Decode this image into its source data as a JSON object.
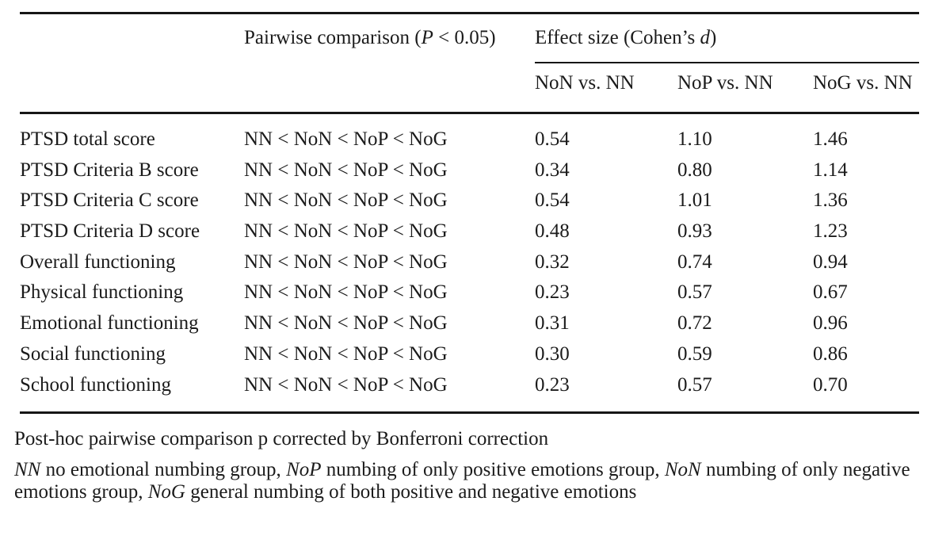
{
  "page": {
    "background_color": "#ffffff",
    "text_color": "#1b1b1b",
    "rule_color": "#161616"
  },
  "table": {
    "header": {
      "pairwise": {
        "pre": "Pairwise comparison (",
        "italic": "P",
        "post": " < 0.05)"
      },
      "effect": {
        "pre": "Effect size (Cohen’s ",
        "italic": "d",
        "post": ")"
      },
      "effect_subcolumns": [
        "NoN vs. NN",
        "NoP vs. NN",
        "NoG vs. NN"
      ]
    },
    "rows": [
      {
        "label": "PTSD total score",
        "pairwise": "NN < NoN < NoP < NoG",
        "values": [
          "0.54",
          "1.10",
          "1.46"
        ]
      },
      {
        "label": "PTSD Criteria B score",
        "pairwise": "NN < NoN < NoP < NoG",
        "values": [
          "0.34",
          "0.80",
          "1.14"
        ]
      },
      {
        "label": "PTSD Criteria C score",
        "pairwise": "NN < NoN < NoP < NoG",
        "values": [
          "0.54",
          "1.01",
          "1.36"
        ]
      },
      {
        "label": "PTSD Criteria D score",
        "pairwise": "NN < NoN < NoP < NoG",
        "values": [
          "0.48",
          "0.93",
          "1.23"
        ]
      },
      {
        "label": "Overall functioning",
        "pairwise": "NN < NoN < NoP < NoG",
        "values": [
          "0.32",
          "0.74",
          "0.94"
        ]
      },
      {
        "label": "Physical functioning",
        "pairwise": "NN < NoN < NoP < NoG",
        "values": [
          "0.23",
          "0.57",
          "0.67"
        ]
      },
      {
        "label": "Emotional functioning",
        "pairwise": "NN < NoN < NoP < NoG",
        "values": [
          "0.31",
          "0.72",
          "0.96"
        ]
      },
      {
        "label": "Social functioning",
        "pairwise": "NN < NoN < NoP < NoG",
        "values": [
          "0.30",
          "0.59",
          "0.86"
        ]
      },
      {
        "label": "School functioning",
        "pairwise": "NN < NoN < NoP < NoG",
        "values": [
          "0.23",
          "0.57",
          "0.70"
        ]
      }
    ]
  },
  "footnotes": {
    "general": "Post-hoc pairwise comparison p corrected by Bonferroni correction",
    "definitions": [
      [
        {
          "t": "NN",
          "i": true
        },
        {
          "t": " no emotional numbing group, "
        },
        {
          "t": "NoP",
          "i": true
        },
        {
          "t": " numbing of only positive emotions group, "
        },
        {
          "t": "NoN",
          "i": true
        },
        {
          "t": " numbing of only negative"
        }
      ],
      [
        {
          "t": "emotions group, "
        },
        {
          "t": "NoG",
          "i": true
        },
        {
          "t": " general numbing of both positive and negative emotions"
        }
      ]
    ]
  }
}
